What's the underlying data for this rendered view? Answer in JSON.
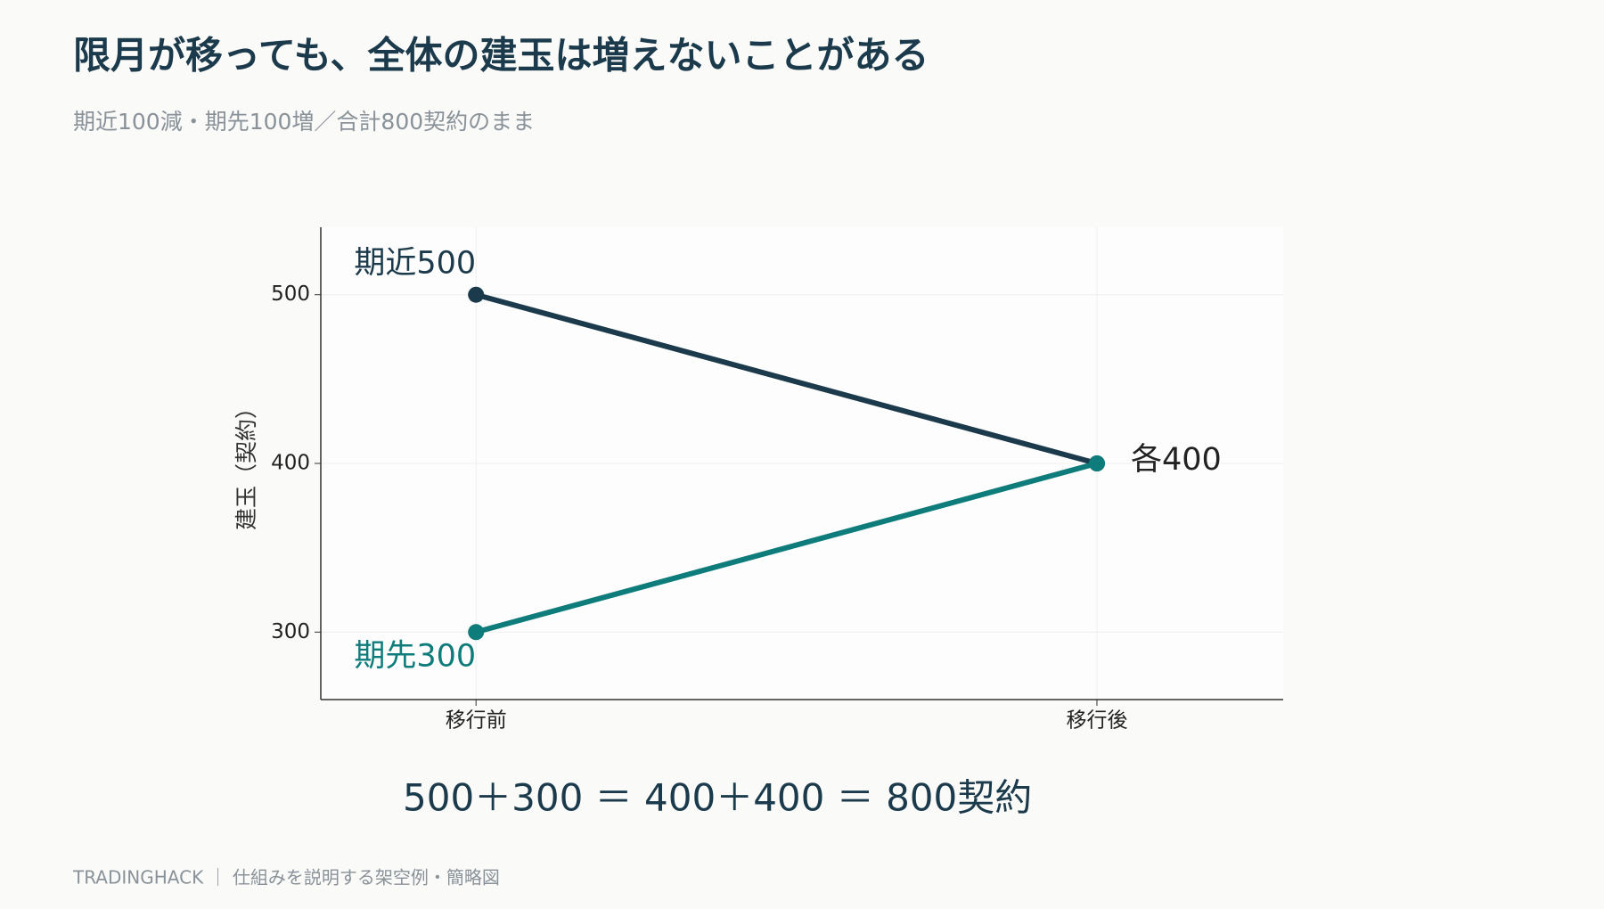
{
  "chart_data": {
    "type": "line",
    "title": "限月が移っても、全体の建玉は増えないことがある",
    "subtitle": "期近100減・期先100増／合計800契約のまま",
    "ylabel": "建玉（契約）",
    "categories": [
      "移行前",
      "移行後"
    ],
    "series": [
      {
        "color": "#1b3a4b",
        "values": [
          500,
          400
        ]
      },
      {
        "color": "#0e7c7b",
        "values": [
          300,
          400
        ]
      }
    ],
    "ylim": [
      260,
      540
    ],
    "yticks": [
      300,
      400,
      500
    ],
    "grid": true,
    "annotations": [
      {
        "text": "期近500",
        "color": "#1b3a4b"
      },
      {
        "text": "期先300",
        "color": "#0e7c7b"
      },
      {
        "text": "各400",
        "color": "#222222"
      }
    ],
    "formula": "500＋300 ＝ 400＋400 ＝ 800契約",
    "footer": "TRADINGHACK ｜ 仕組みを説明する架空例・簡略図"
  }
}
